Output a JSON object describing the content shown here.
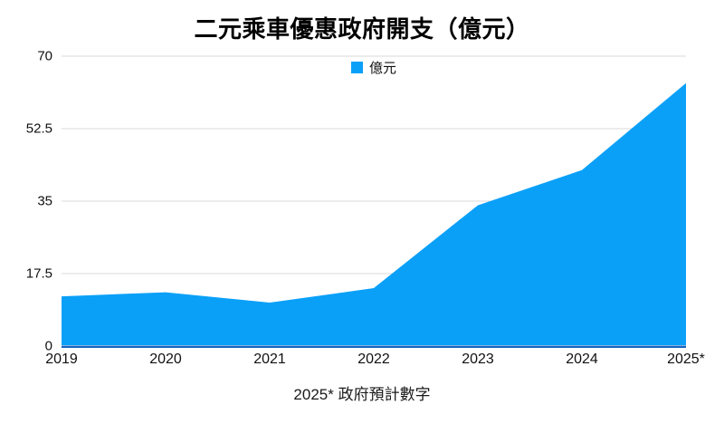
{
  "title": "二元乘車優惠政府開支（億元）",
  "legend": {
    "label": "億元"
  },
  "footnote": "2025* 政府預計數字",
  "colors": {
    "area": "#0aa0f8",
    "axis_line": "#1565c0",
    "gridline": "#d9d9d9",
    "text": "#111111"
  },
  "chart_data": {
    "type": "area",
    "categories": [
      "2019",
      "2020",
      "2021",
      "2022",
      "2023",
      "2024",
      "2025*"
    ],
    "series": [
      {
        "name": "億元",
        "values": [
          12,
          13,
          10.5,
          14,
          34,
          42.5,
          63.5
        ]
      }
    ],
    "title": "二元乘車優惠政府開支（億元）",
    "xlabel": "",
    "ylabel": "",
    "ylim": [
      0,
      70
    ],
    "yticks": [
      0,
      17.5,
      35,
      52.5,
      70
    ],
    "ytick_labels": [
      "0",
      "17.5",
      "35",
      "52.5",
      "70"
    ],
    "grid": true,
    "legend_position": "top-center",
    "annotation": "2025* 政府預計數字"
  }
}
